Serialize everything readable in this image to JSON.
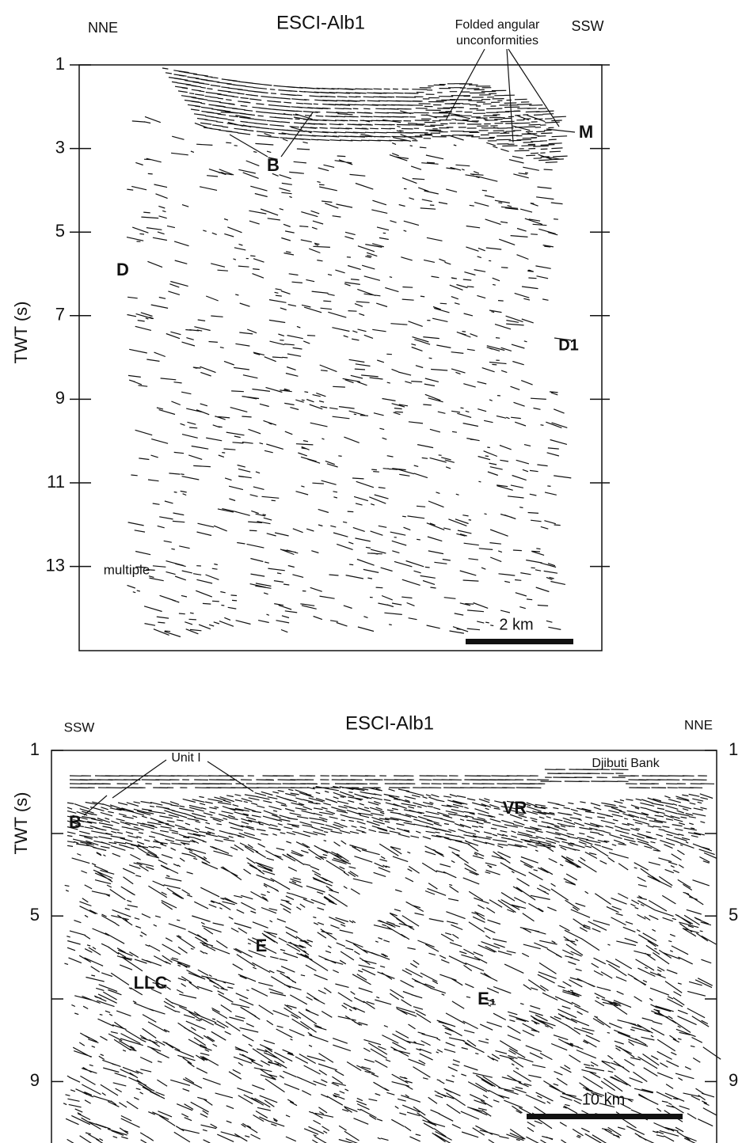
{
  "panels": [
    {
      "title": "ESCI-Alb1",
      "left_label": "NNE",
      "right_label": "SSW",
      "y_axis_label": "TWT (s)",
      "y_ticks": [
        1,
        3,
        5,
        7,
        9,
        11,
        13
      ],
      "callout": [
        "Folded angular",
        "unconformities"
      ],
      "annotations": [
        "B",
        "M",
        "D",
        "D1",
        "multiple"
      ],
      "scale_bar": "2 km"
    },
    {
      "title": "ESCI-Alb1",
      "left_label": "SSW",
      "right_label": "NNE",
      "y_axis_label": "TWT (s)",
      "y_ticks": [
        1,
        5,
        9
      ],
      "right_y_ticks": [
        1,
        5,
        9
      ],
      "annotations": [
        "Unit I",
        "Djibuti Bank",
        "B",
        "VR",
        "E",
        "LLC",
        "E₁"
      ],
      "scale_bar": "10 km"
    }
  ]
}
